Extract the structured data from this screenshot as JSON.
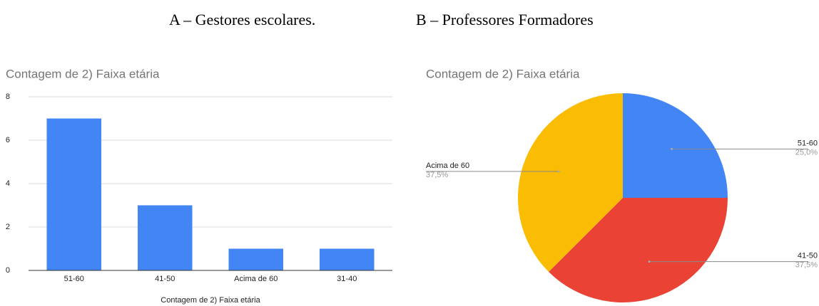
{
  "headers": [
    "A – Gestores escolares.",
    "B – Professores Formadores"
  ],
  "chart_data": [
    {
      "type": "bar",
      "title": "Contagem de 2) Faixa etária",
      "categories": [
        "51-60",
        "41-50",
        "Acima de 60",
        "31-40"
      ],
      "values": [
        7,
        3,
        1,
        1
      ],
      "color": "#4285f4",
      "ylim": [
        0,
        8
      ],
      "yticks": [
        0,
        2,
        4,
        6,
        8
      ],
      "grid": true,
      "x_label": "Contagem de 2) Faixa etária"
    },
    {
      "type": "pie",
      "title": "Contagem de 2) Faixa etária",
      "categories": [
        "51-60",
        "41-50",
        "Acima de 60"
      ],
      "values": [
        25,
        37.5,
        37.5
      ],
      "value_labels": [
        "25,0%",
        "37,5%",
        "37,5%"
      ],
      "colors": [
        "#4285f4",
        "#ea4335",
        "#fbbc04"
      ]
    }
  ]
}
